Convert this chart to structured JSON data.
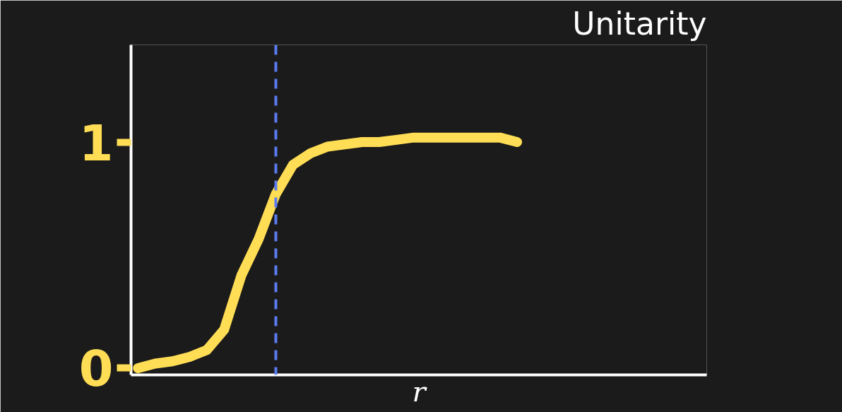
{
  "chart_data": {
    "type": "line",
    "title": "Unitarity",
    "xlabel": "r",
    "categories": [
      null,
      null,
      null,
      null,
      null,
      null,
      null,
      null,
      null,
      null,
      null,
      null,
      null,
      null,
      null,
      null,
      null,
      null,
      null,
      null,
      null,
      null,
      null
    ],
    "series": [
      {
        "color": "#ffdd55",
        "values": [
          0,
          0.02,
          0.03,
          0.05,
          0.08,
          0.17,
          0.41,
          0.57,
          0.77,
          0.9,
          0.95,
          0.98,
          0.99,
          1.0,
          1.0,
          1.01,
          1.02,
          1.02,
          1.02,
          1.02,
          1.02,
          1.02,
          1.0
        ]
      }
    ],
    "ylim": [
      -0.03,
      1.43
    ],
    "yticks": [
      0,
      1
    ],
    "grid": false,
    "marker": "none",
    "line_style": "solid"
  }
}
